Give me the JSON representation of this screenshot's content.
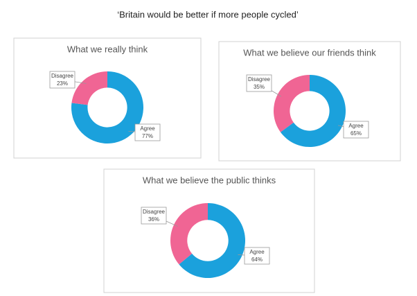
{
  "title": "‘Britain would be better if more people cycled’",
  "chart_data": [
    {
      "type": "donut",
      "title": "What we really think",
      "categories": [
        "Agree",
        "Disagree"
      ],
      "values": [
        77,
        23
      ],
      "value_labels": [
        "77%",
        "23%"
      ],
      "colors": [
        "#1ba1dc",
        "#f06594"
      ]
    },
    {
      "type": "donut",
      "title": "What we believe our friends think",
      "categories": [
        "Agree",
        "Disagree"
      ],
      "values": [
        65,
        35
      ],
      "value_labels": [
        "65%",
        "35%"
      ],
      "colors": [
        "#1ba1dc",
        "#f06594"
      ]
    },
    {
      "type": "donut",
      "title": "What we believe the public thinks",
      "categories": [
        "Agree",
        "Disagree"
      ],
      "values": [
        64,
        36
      ],
      "value_labels": [
        "64%",
        "36%"
      ],
      "colors": [
        "#1ba1dc",
        "#f06594"
      ]
    }
  ]
}
